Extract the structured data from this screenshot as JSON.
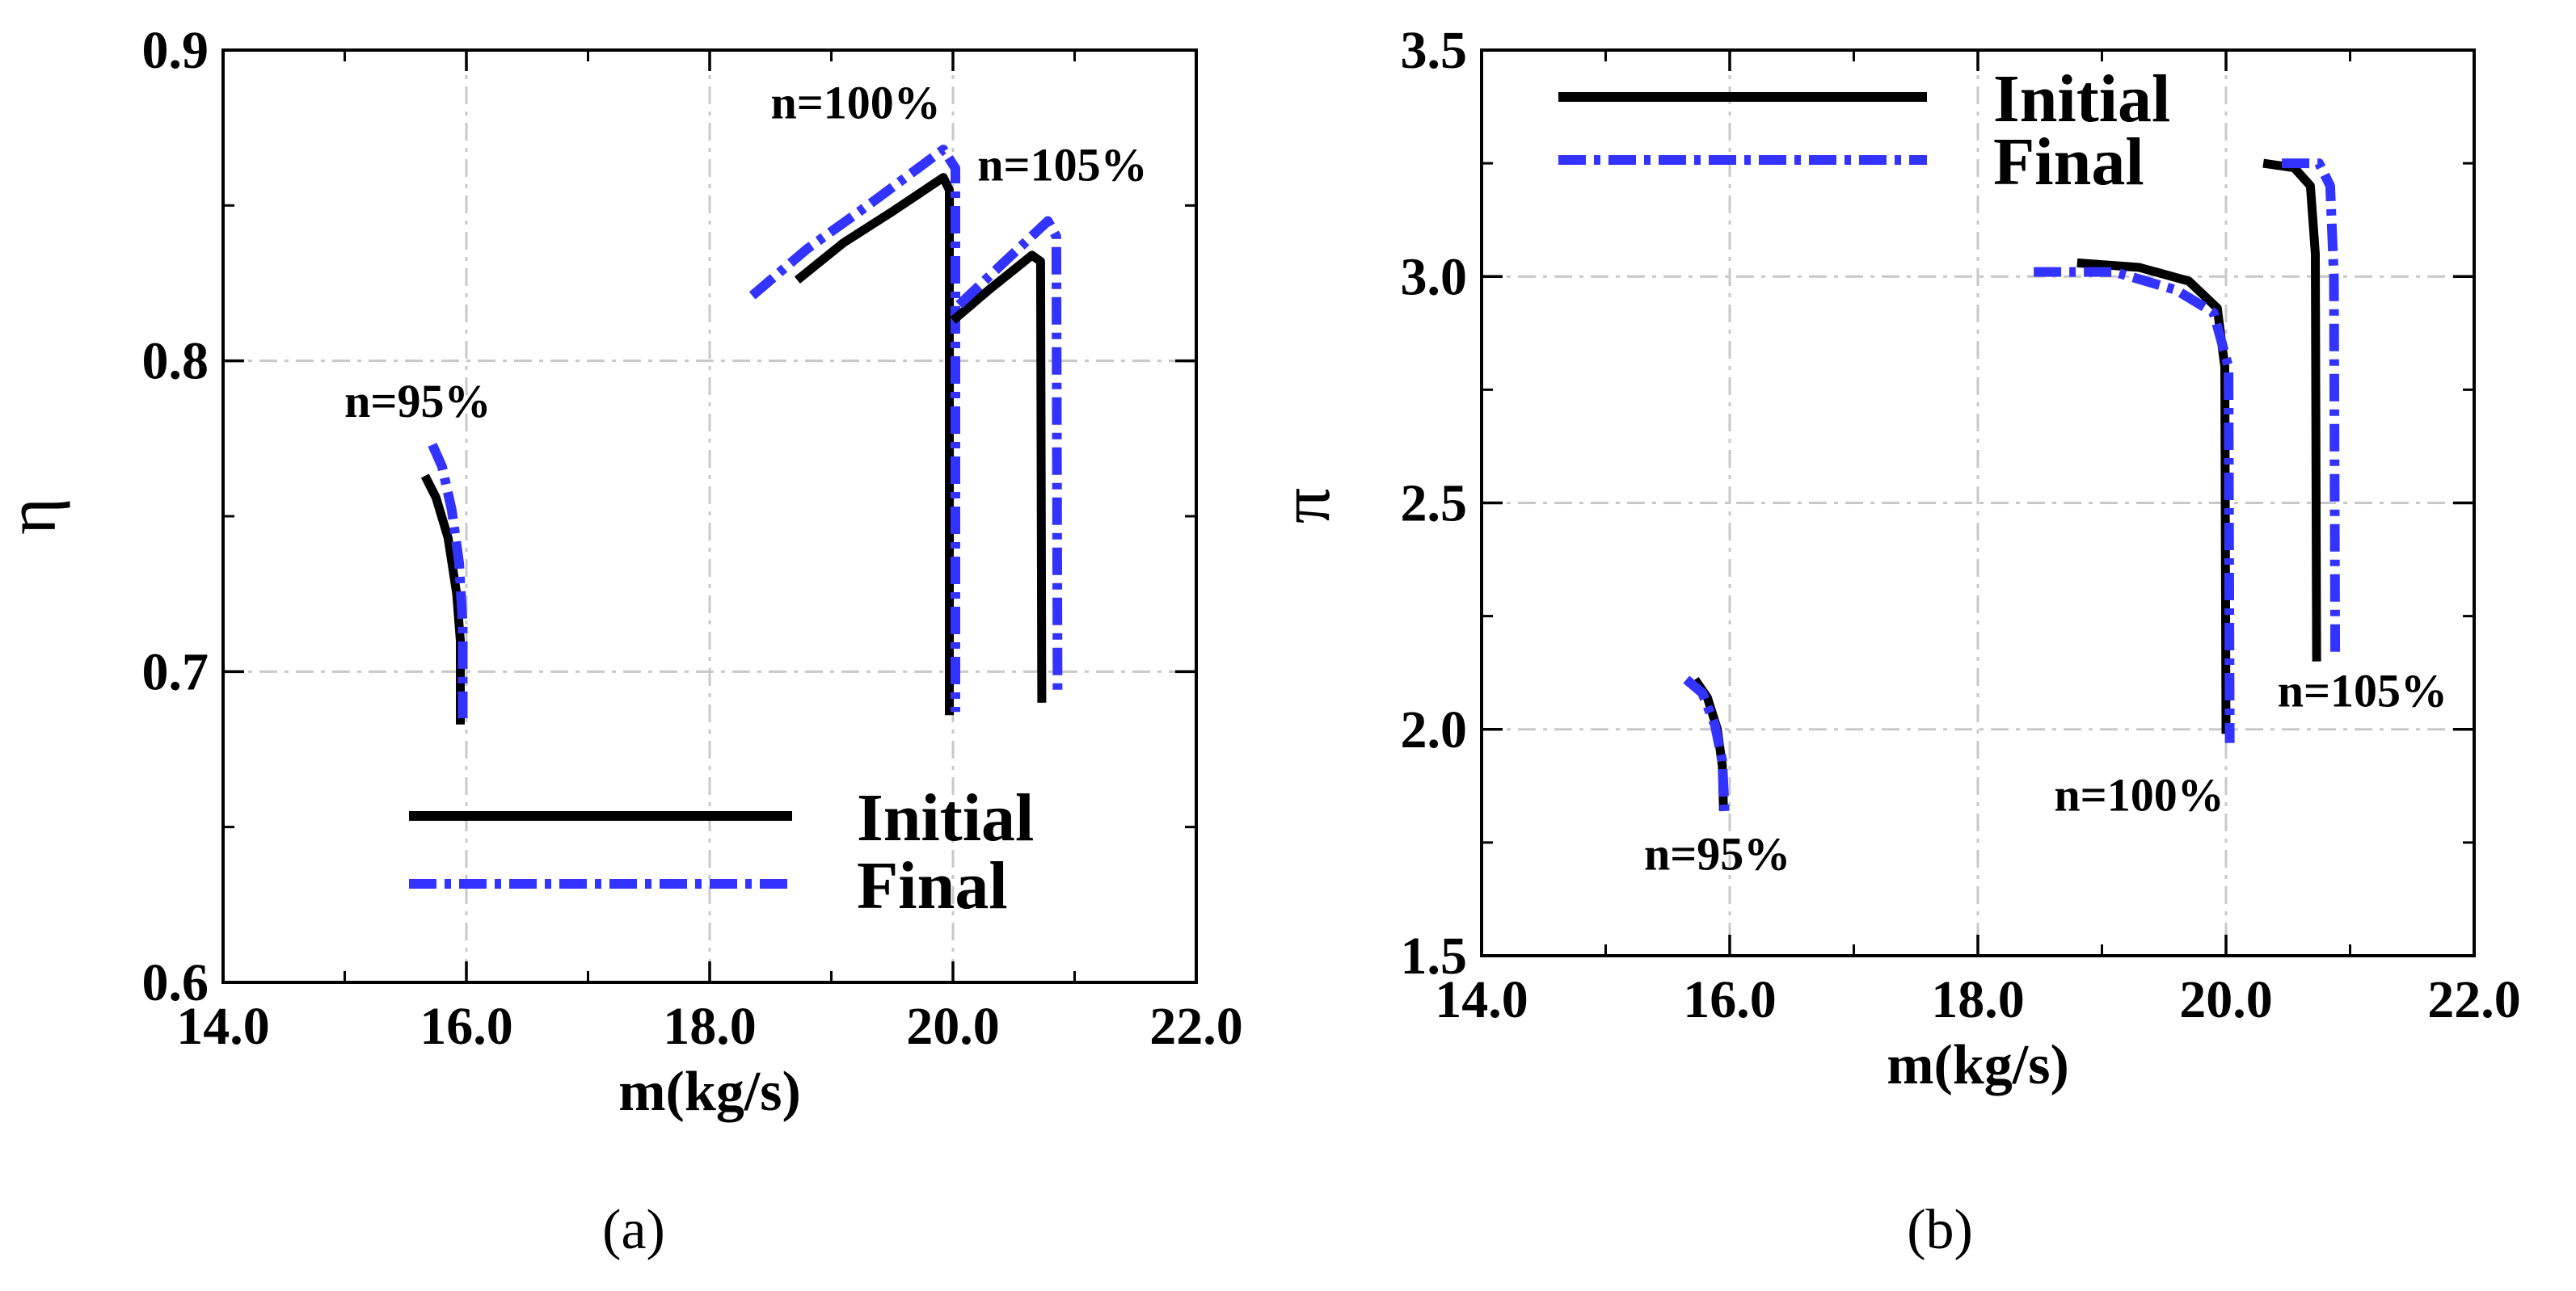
{
  "colors": {
    "initial": "#000000",
    "final": "#3333ff",
    "grid": "#c8c8c8",
    "axis": "#000000",
    "background": "#ffffff"
  },
  "chart_data": [
    {
      "type": "line",
      "panel_label": "(a)",
      "xlabel": "m(kg/s)",
      "ylabel": "η",
      "xlim": [
        14.0,
        22.0
      ],
      "ylim": [
        0.6,
        0.9
      ],
      "xticks": [
        14.0,
        16.0,
        18.0,
        20.0,
        22.0
      ],
      "xtick_labels": [
        "14.0",
        "16.0",
        "18.0",
        "20.0",
        "22.0"
      ],
      "yticks": [
        0.6,
        0.7,
        0.8,
        0.9
      ],
      "ytick_labels": [
        "0.6",
        "0.7",
        "0.8",
        "0.9"
      ],
      "grid": true,
      "legend_position": "bottom-center",
      "legend": [
        "Initial",
        "Final"
      ],
      "annotations": [
        {
          "text": "n=95%",
          "x": 15.6,
          "y": 0.782
        },
        {
          "text": "n=100%",
          "x": 19.2,
          "y": 0.878
        },
        {
          "text": "n=105%",
          "x": 20.9,
          "y": 0.858
        }
      ],
      "series": [
        {
          "name": "Initial",
          "speed": "n=95%",
          "points": [
            [
              15.66,
              0.763
            ],
            [
              15.75,
              0.756
            ],
            [
              15.85,
              0.743
            ],
            [
              15.92,
              0.725
            ],
            [
              15.95,
              0.71
            ],
            [
              15.95,
              0.683
            ]
          ]
        },
        {
          "name": "Final",
          "speed": "n=95%",
          "points": [
            [
              15.72,
              0.773
            ],
            [
              15.8,
              0.766
            ],
            [
              15.88,
              0.752
            ],
            [
              15.94,
              0.735
            ],
            [
              15.97,
              0.715
            ],
            [
              15.97,
              0.685
            ]
          ]
        },
        {
          "name": "Initial",
          "speed": "n=100%",
          "points": [
            [
              18.72,
              0.826
            ],
            [
              19.1,
              0.838
            ],
            [
              19.5,
              0.848
            ],
            [
              19.92,
              0.859
            ],
            [
              19.97,
              0.855
            ],
            [
              19.97,
              0.686
            ]
          ]
        },
        {
          "name": "Final",
          "speed": "n=100%",
          "points": [
            [
              18.35,
              0.821
            ],
            [
              18.8,
              0.836
            ],
            [
              19.3,
              0.85
            ],
            [
              19.92,
              0.868
            ],
            [
              20.02,
              0.862
            ],
            [
              20.02,
              0.687
            ]
          ]
        },
        {
          "name": "Initial",
          "speed": "n=105%",
          "points": [
            [
              20.0,
              0.813
            ],
            [
              20.3,
              0.823
            ],
            [
              20.65,
              0.834
            ],
            [
              20.72,
              0.832
            ],
            [
              20.73,
              0.69
            ]
          ]
        },
        {
          "name": "Final",
          "speed": "n=105%",
          "points": [
            [
              20.05,
              0.818
            ],
            [
              20.4,
              0.831
            ],
            [
              20.78,
              0.845
            ],
            [
              20.85,
              0.84
            ],
            [
              20.86,
              0.693
            ]
          ]
        }
      ]
    },
    {
      "type": "line",
      "panel_label": "(b)",
      "xlabel": "m(kg/s)",
      "ylabel": "π",
      "xlim": [
        14.0,
        22.0
      ],
      "ylim": [
        1.5,
        3.5
      ],
      "xticks": [
        14.0,
        16.0,
        18.0,
        20.0,
        22.0
      ],
      "xtick_labels": [
        "14.0",
        "16.0",
        "18.0",
        "20.0",
        "22.0"
      ],
      "yticks": [
        1.5,
        2.0,
        2.5,
        3.0,
        3.5
      ],
      "ytick_labels": [
        "1.5",
        "2.0",
        "2.5",
        "3.0",
        "3.5"
      ],
      "grid": true,
      "legend_position": "top-left",
      "legend": [
        "Initial",
        "Final"
      ],
      "annotations": [
        {
          "text": "n=95%",
          "x": 15.9,
          "y": 1.69
        },
        {
          "text": "n=100%",
          "x": 19.3,
          "y": 1.82
        },
        {
          "text": "n=105%",
          "x": 21.1,
          "y": 2.05
        }
      ],
      "series": [
        {
          "name": "Initial",
          "speed": "n=95%",
          "points": [
            [
              15.72,
              2.11
            ],
            [
              15.82,
              2.07
            ],
            [
              15.9,
              2.0
            ],
            [
              15.94,
              1.92
            ],
            [
              15.95,
              1.82
            ]
          ]
        },
        {
          "name": "Final",
          "speed": "n=95%",
          "points": [
            [
              15.65,
              2.11
            ],
            [
              15.78,
              2.08
            ],
            [
              15.88,
              2.01
            ],
            [
              15.94,
              1.93
            ],
            [
              15.96,
              1.81
            ]
          ]
        },
        {
          "name": "Initial",
          "speed": "n=100%",
          "points": [
            [
              18.8,
              3.03
            ],
            [
              19.3,
              3.02
            ],
            [
              19.7,
              2.99
            ],
            [
              19.93,
              2.93
            ],
            [
              19.99,
              2.8
            ],
            [
              20.0,
              1.99
            ]
          ]
        },
        {
          "name": "Final",
          "speed": "n=100%",
          "points": [
            [
              18.45,
              3.01
            ],
            [
              19.1,
              3.01
            ],
            [
              19.6,
              2.97
            ],
            [
              19.9,
              2.92
            ],
            [
              20.02,
              2.8
            ],
            [
              20.03,
              1.97
            ]
          ]
        },
        {
          "name": "Initial",
          "speed": "n=105%",
          "points": [
            [
              20.3,
              3.25
            ],
            [
              20.55,
              3.24
            ],
            [
              20.68,
              3.2
            ],
            [
              20.72,
              3.05
            ],
            [
              20.73,
              2.15
            ]
          ]
        },
        {
          "name": "Final",
          "speed": "n=105%",
          "points": [
            [
              20.45,
              3.25
            ],
            [
              20.75,
              3.25
            ],
            [
              20.84,
              3.2
            ],
            [
              20.87,
              3.0
            ],
            [
              20.88,
              2.16
            ]
          ]
        }
      ]
    }
  ]
}
